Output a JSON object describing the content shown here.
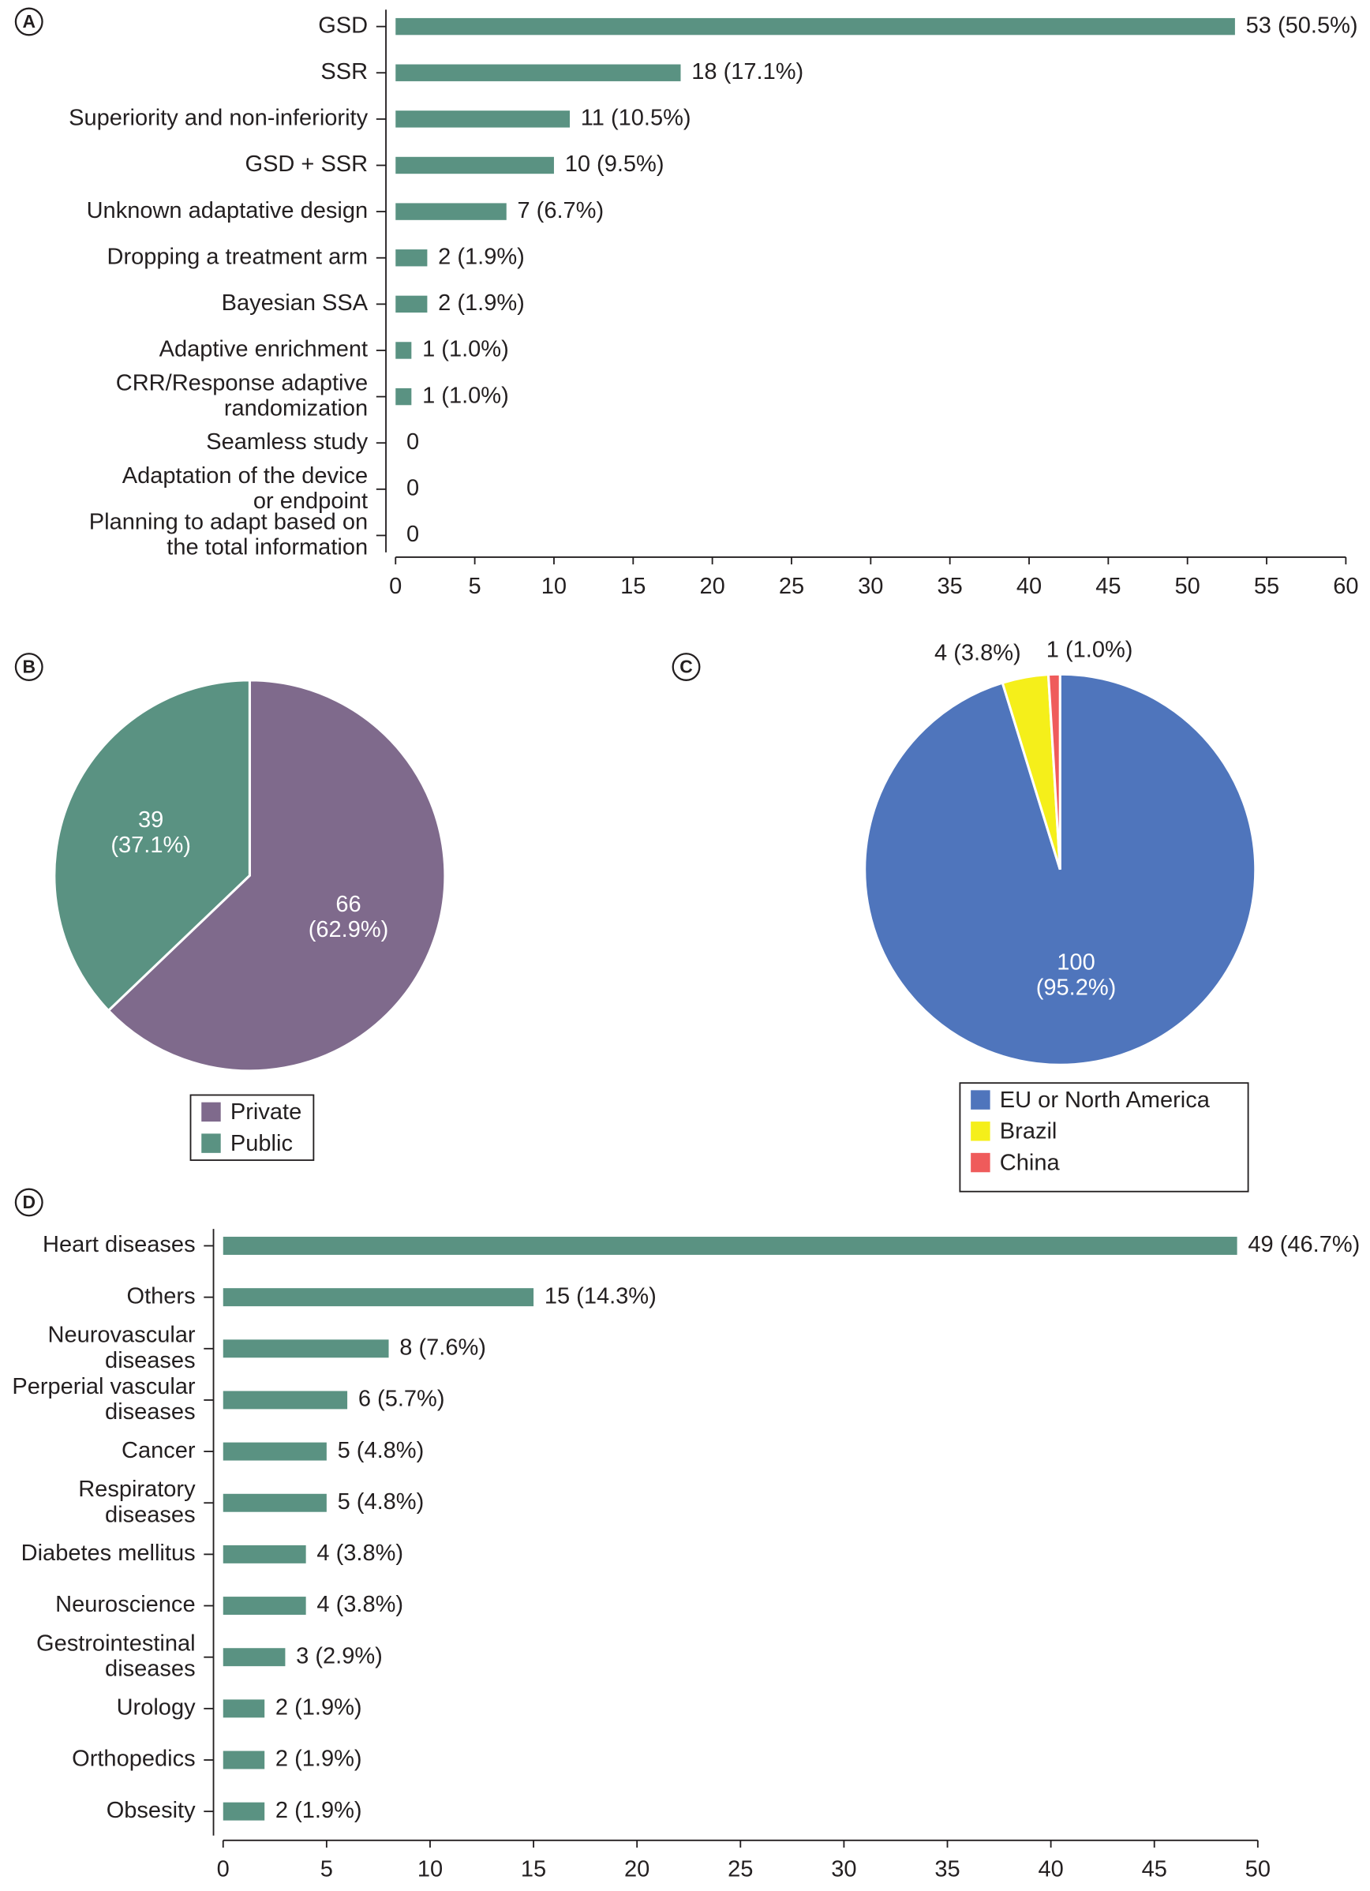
{
  "chart_data": [
    {
      "type": "bar",
      "panel": "A",
      "categories": [
        "GSD",
        "SSR",
        "Superiority and non-inferiority",
        "GSD + SSR",
        "Unknown adaptative design",
        "Dropping a treatment arm",
        "Bayesian SSA",
        "Adaptive enrichment",
        "CRR/Response adaptive\nrandomization",
        "Seamless study",
        "Adaptation of the device\nor endpoint",
        "Planning to adapt based on\nthe total information"
      ],
      "values": [
        53,
        18,
        11,
        10,
        7,
        2,
        2,
        1,
        1,
        0,
        0,
        0
      ],
      "value_labels": [
        "53 (50.5%)",
        "18 (17.1%)",
        "11 (10.5%)",
        "10 (9.5%)",
        "7 (6.7%)",
        "2 (1.9%)",
        "2 (1.9%)",
        "1 (1.0%)",
        "1 (1.0%)",
        "0",
        "0",
        "0"
      ],
      "color": "#5a9282",
      "xlim": [
        0,
        60
      ],
      "xticks": [
        0,
        5,
        10,
        15,
        20,
        25,
        30,
        35,
        40,
        45,
        50,
        55,
        60
      ]
    },
    {
      "type": "pie",
      "panel": "B",
      "categories": [
        "Private",
        "Public"
      ],
      "values": [
        66,
        39
      ],
      "value_labels": [
        "66\n(62.9%)",
        "39\n(37.1%)"
      ],
      "colors": [
        "#7f6a8c",
        "#5a9282"
      ],
      "legend": "bottom"
    },
    {
      "type": "pie",
      "panel": "C",
      "categories": [
        "EU or North America",
        "Brazil",
        "China"
      ],
      "values": [
        100,
        4,
        1
      ],
      "value_labels": [
        "100\n(95.2%)",
        "4 (3.8%)",
        "1 (1.0%)"
      ],
      "colors": [
        "#4f75bc",
        "#f5ef1a",
        "#ef5b5b"
      ],
      "legend": "bottom"
    },
    {
      "type": "bar",
      "panel": "D",
      "categories": [
        "Heart diseases",
        "Others",
        "Neurovascular\ndiseases",
        "Perperial vascular\ndiseases",
        "Cancer",
        "Respiratory\ndiseases",
        "Diabetes mellitus",
        "Neuroscience",
        "Gestrointestinal\ndiseases",
        "Urology",
        "Orthopedics",
        "Obsesity"
      ],
      "values": [
        49,
        15,
        8,
        6,
        5,
        5,
        4,
        4,
        3,
        2,
        2,
        2
      ],
      "value_labels": [
        "49 (46.7%)",
        "15 (14.3%)",
        "8 (7.6%)",
        "6 (5.7%)",
        "5 (4.8%)",
        "5 (4.8%)",
        "4 (3.8%)",
        "4 (3.8%)",
        "3 (2.9%)",
        "2 (1.9%)",
        "2 (1.9%)",
        "2 (1.9%)"
      ],
      "color": "#5a9282",
      "xlim": [
        0,
        50
      ],
      "xticks": [
        0,
        5,
        10,
        15,
        20,
        25,
        30,
        35,
        40,
        45,
        50
      ]
    }
  ]
}
